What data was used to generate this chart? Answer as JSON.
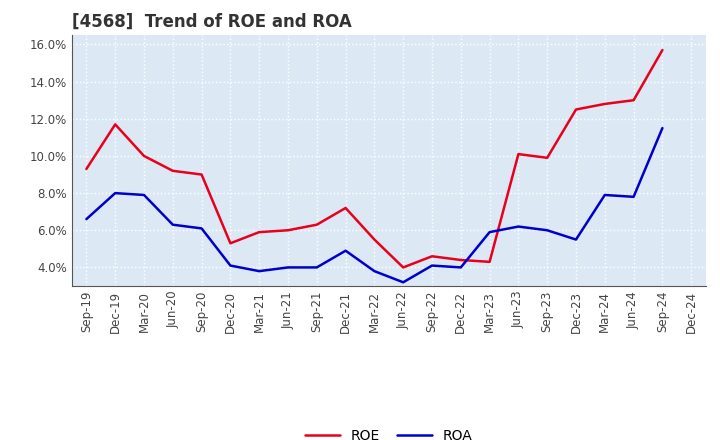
{
  "title": "[4568]  Trend of ROE and ROA",
  "labels": [
    "Sep-19",
    "Dec-19",
    "Mar-20",
    "Jun-20",
    "Sep-20",
    "Dec-20",
    "Mar-21",
    "Jun-21",
    "Sep-21",
    "Dec-21",
    "Mar-22",
    "Jun-22",
    "Sep-22",
    "Dec-22",
    "Mar-23",
    "Jun-23",
    "Sep-23",
    "Dec-23",
    "Mar-24",
    "Jun-24",
    "Sep-24",
    "Dec-24"
  ],
  "ROE": [
    9.3,
    11.7,
    10.0,
    9.2,
    9.0,
    5.3,
    5.9,
    6.0,
    6.3,
    7.2,
    5.5,
    4.0,
    4.6,
    4.4,
    4.3,
    10.1,
    9.9,
    12.5,
    12.8,
    13.0,
    15.7,
    null
  ],
  "ROA": [
    6.6,
    8.0,
    7.9,
    6.3,
    6.1,
    4.1,
    3.8,
    4.0,
    4.0,
    4.9,
    3.8,
    3.2,
    4.1,
    4.0,
    5.9,
    6.2,
    6.0,
    5.5,
    7.9,
    7.8,
    11.5,
    null
  ],
  "ROE_color": "#e8001c",
  "ROA_color": "#0000cc",
  "background_color": "#ffffff",
  "plot_bg_color": "#dce9f5",
  "grid_color": "#ffffff",
  "grid_style": "dotted",
  "ylim": [
    3.0,
    16.5
  ],
  "yticks": [
    4.0,
    6.0,
    8.0,
    10.0,
    12.0,
    14.0,
    16.0
  ],
  "title_fontsize": 12,
  "legend_fontsize": 10,
  "tick_fontsize": 8.5
}
